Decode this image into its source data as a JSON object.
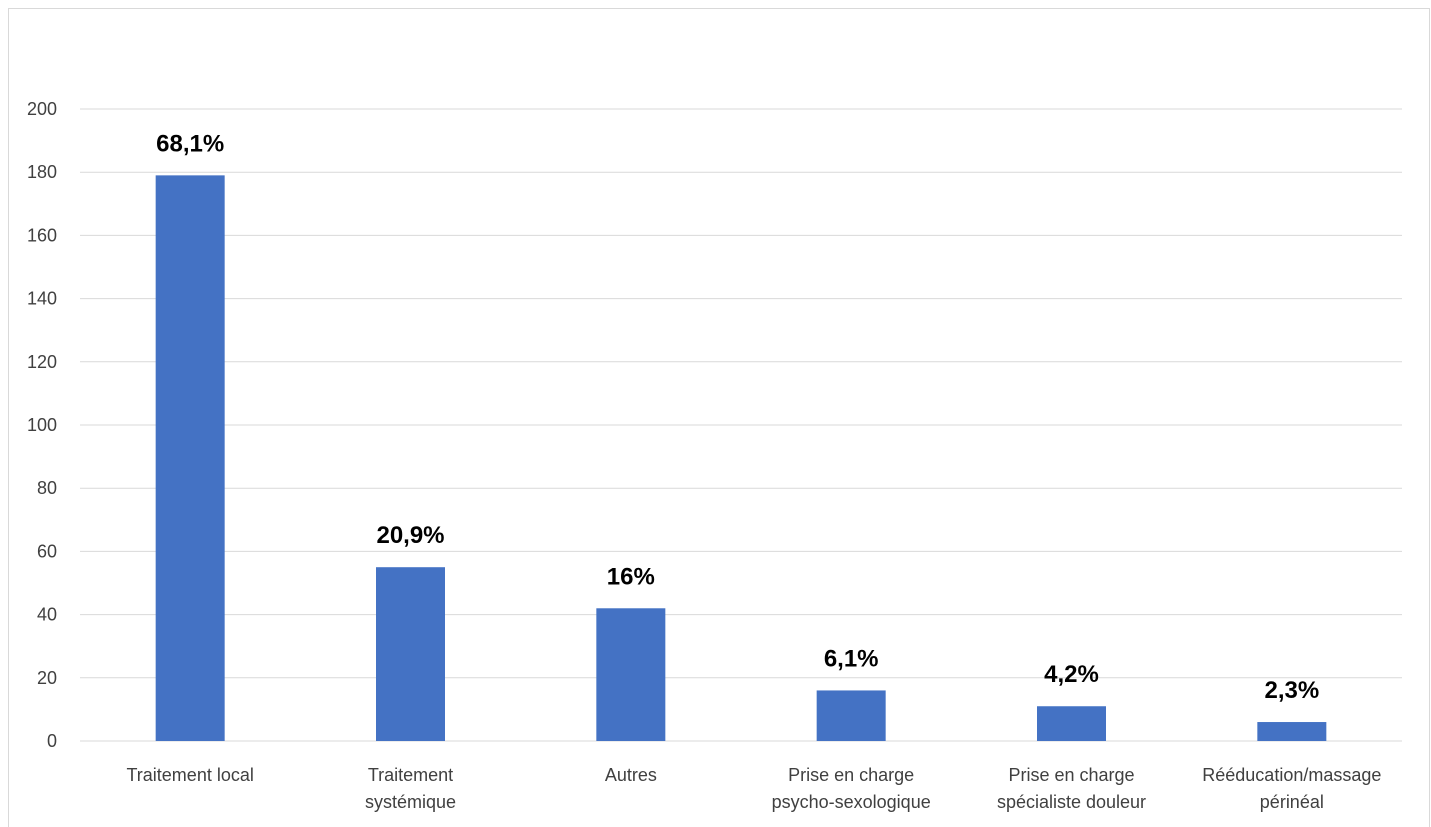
{
  "chart_data": {
    "type": "bar",
    "title": "",
    "xlabel": "",
    "ylabel": "",
    "ylim": [
      0,
      200
    ],
    "yticks": [
      0,
      20,
      40,
      60,
      80,
      100,
      120,
      140,
      160,
      180,
      200
    ],
    "grid": true,
    "legend": "none",
    "bar_color": "#4472c4",
    "categories": [
      [
        "Traitement local"
      ],
      [
        "Traitement",
        "systémique"
      ],
      [
        "Autres"
      ],
      [
        "Prise en charge",
        "psycho-sexologique"
      ],
      [
        "Prise en charge",
        "spécialiste douleur"
      ],
      [
        "Rééducation/massage",
        "périnéal"
      ]
    ],
    "values": [
      179,
      55,
      42,
      16,
      11,
      6
    ],
    "data_labels": [
      "68,1%",
      "20,9%",
      "16%",
      "6,1%",
      "4,2%",
      "2,3%"
    ]
  }
}
